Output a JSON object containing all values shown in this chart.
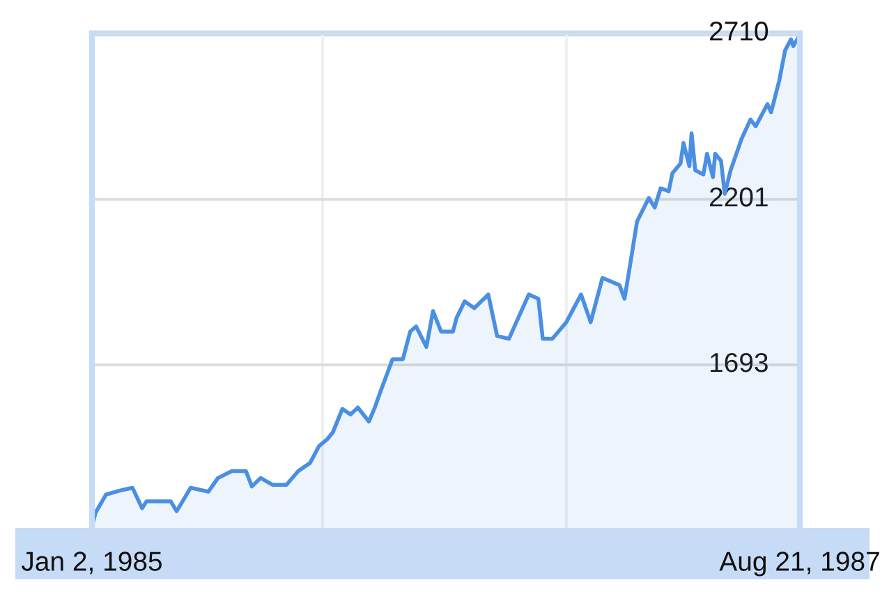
{
  "chart_data": {
    "type": "area",
    "x": [
      "1985-01-02",
      "1985-01-07",
      "1985-01-21",
      "1985-02-10",
      "1985-02-26",
      "1985-03-11",
      "1985-03-17",
      "1985-04-19",
      "1985-04-27",
      "1985-05-16",
      "1985-06-09",
      "1985-06-22",
      "1985-07-11",
      "1985-07-30",
      "1985-08-07",
      "1985-08-19",
      "1985-09-04",
      "1985-09-23",
      "1985-10-09",
      "1985-10-25",
      "1985-11-06",
      "1985-11-17",
      "1985-11-25",
      "1985-12-08",
      "1985-12-19",
      "1985-12-29",
      "1986-01-13",
      "1986-01-21",
      "1986-01-29",
      "1986-02-14",
      "1986-02-28",
      "1986-03-10",
      "1986-03-18",
      "1986-04-01",
      "1986-04-10",
      "1986-04-21",
      "1986-05-07",
      "1986-05-12",
      "1986-05-23",
      "1986-06-05",
      "1986-06-24",
      "1986-07-06",
      "1986-07-22",
      "1986-08-18",
      "1986-08-31",
      "1986-09-06",
      "1986-09-19",
      "1986-10-08",
      "1986-10-28",
      "1986-11-10",
      "1986-11-26",
      "1986-12-19",
      "1986-12-26",
      "1987-01-03",
      "1987-01-12",
      "1987-01-28",
      "1987-02-05",
      "1987-02-13",
      "1987-02-24",
      "1987-03-01",
      "1987-03-12",
      "1987-03-16",
      "1987-03-24",
      "1987-03-27",
      "1987-04-01",
      "1987-04-12",
      "1987-04-17",
      "1987-04-25",
      "1987-04-28",
      "1987-05-06",
      "1987-05-11",
      "1987-05-19",
      "1987-06-03",
      "1987-06-15",
      "1987-06-22",
      "1987-07-08",
      "1987-07-13",
      "1987-07-24",
      "1987-08-01",
      "1987-08-09",
      "1987-08-12",
      "1987-08-21"
    ],
    "series": [
      {
        "color": "#4a8fe2",
        "values": [
          1198,
          1240,
          1295,
          1308,
          1316,
          1253,
          1274,
          1274,
          1244,
          1316,
          1304,
          1346,
          1367,
          1367,
          1320,
          1346,
          1325,
          1325,
          1367,
          1392,
          1443,
          1464,
          1486,
          1558,
          1541,
          1562,
          1519,
          1562,
          1613,
          1710,
          1710,
          1795,
          1811,
          1748,
          1858,
          1795,
          1795,
          1837,
          1888,
          1867,
          1909,
          1782,
          1773,
          1909,
          1896,
          1773,
          1773,
          1824,
          1909,
          1824,
          1960,
          1938,
          1896,
          2006,
          2133,
          2205,
          2176,
          2235,
          2226,
          2281,
          2311,
          2374,
          2303,
          2404,
          2290,
          2277,
          2341,
          2269,
          2341,
          2319,
          2218,
          2290,
          2387,
          2446,
          2425,
          2493,
          2468,
          2565,
          2658,
          2692,
          2671,
          2705
        ]
      }
    ],
    "xlim": [
      "1985-01-02",
      "1987-08-21"
    ],
    "xticks": [
      {
        "value": "1985-01-02",
        "label": "Jan 2, 1985"
      },
      {
        "value": "1985-11-11",
        "label": null
      },
      {
        "value": "1986-10-08",
        "label": null
      },
      {
        "value": "1987-08-21",
        "label": "Aug 21, 1987"
      }
    ],
    "ylim": [
      1193,
      2710
    ],
    "yticks": [
      1693,
      2201,
      2710
    ],
    "grid": true,
    "legend": false
  }
}
